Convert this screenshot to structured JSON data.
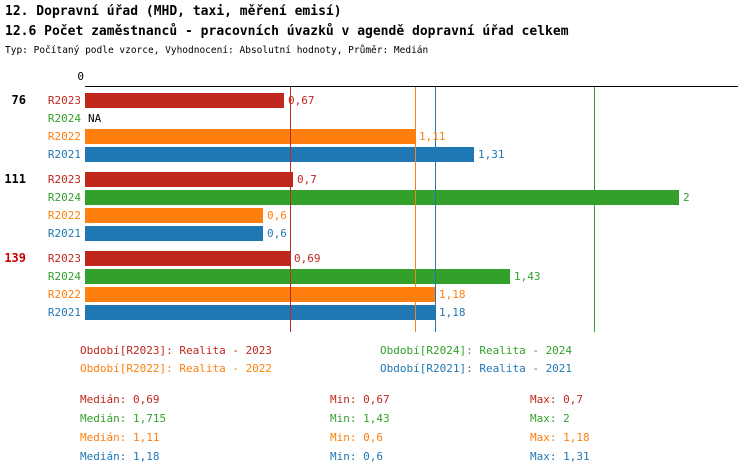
{
  "header": {
    "title": "12. Dopravní úřad (MHD, taxi, měření emisí)",
    "subtitle": "12.6 Počet zaměstnanců - pracovních úvazků v agendě dopravní úřad celkem",
    "meta": "Typ: Počítaný podle vzorce, Vyhodnocení: Absolutní hodnoty, Průměr: Medián"
  },
  "axis": {
    "zero_label": "0"
  },
  "chart_data": {
    "type": "bar",
    "orientation": "horizontal",
    "xlim": [
      0,
      2.2
    ],
    "x_ticks": [
      0
    ],
    "series_order": [
      "R2023",
      "R2024",
      "R2022",
      "R2021"
    ],
    "series_colors": {
      "R2023": "#c0271d",
      "R2024": "#33a02c",
      "R2022": "#ff7f0e",
      "R2021": "#1f77b4"
    },
    "groups": [
      {
        "label": "76",
        "label_color": "#000000",
        "bars": [
          {
            "series": "R2023",
            "value": 0.67,
            "value_label": "0,67"
          },
          {
            "series": "R2024",
            "value": null,
            "value_label": "NA"
          },
          {
            "series": "R2022",
            "value": 1.11,
            "value_label": "1,11"
          },
          {
            "series": "R2021",
            "value": 1.31,
            "value_label": "1,31"
          }
        ]
      },
      {
        "label": "111",
        "label_color": "#000000",
        "bars": [
          {
            "series": "R2023",
            "value": 0.7,
            "value_label": "0,7"
          },
          {
            "series": "R2024",
            "value": 2,
            "value_label": "2"
          },
          {
            "series": "R2022",
            "value": 0.6,
            "value_label": "0,6"
          },
          {
            "series": "R2021",
            "value": 0.6,
            "value_label": "0,6"
          }
        ]
      },
      {
        "label": "139",
        "label_color": "#cc0000",
        "bars": [
          {
            "series": "R2023",
            "value": 0.69,
            "value_label": "0,69"
          },
          {
            "series": "R2024",
            "value": 1.43,
            "value_label": "1,43"
          },
          {
            "series": "R2022",
            "value": 1.18,
            "value_label": "1,18"
          },
          {
            "series": "R2021",
            "value": 1.18,
            "value_label": "1,18"
          }
        ]
      }
    ],
    "median_lines": [
      {
        "series": "R2023",
        "value": 0.69
      },
      {
        "series": "R2024",
        "value": 1.715
      },
      {
        "series": "R2022",
        "value": 1.11
      },
      {
        "series": "R2021",
        "value": 1.18
      }
    ]
  },
  "legend": {
    "items": [
      {
        "series": "R2023",
        "text": "Období[R2023]: Realita - 2023"
      },
      {
        "series": "R2024",
        "text": "Období[R2024]: Realita - 2024"
      },
      {
        "series": "R2022",
        "text": "Období[R2022]: Realita - 2022"
      },
      {
        "series": "R2021",
        "text": "Období[R2021]: Realita - 2021"
      }
    ]
  },
  "stats": {
    "rows": [
      {
        "series": "R2023",
        "median": "Medián: 0,69",
        "min": "Min: 0,67",
        "max": "Max: 0,7"
      },
      {
        "series": "R2024",
        "median": "Medián: 1,715",
        "min": "Min: 1,43",
        "max": "Max: 2"
      },
      {
        "series": "R2022",
        "median": "Medián: 1,11",
        "min": "Min: 0,6",
        "max": "Max: 1,18"
      },
      {
        "series": "R2021",
        "median": "Medián: 1,18",
        "min": "Min: 0,6",
        "max": "Max: 1,31"
      }
    ]
  }
}
